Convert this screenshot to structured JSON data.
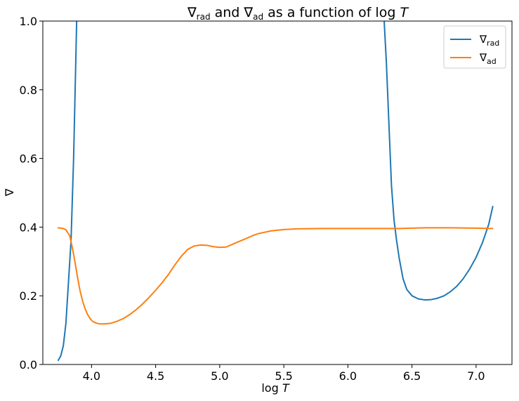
{
  "chart_data": {
    "type": "line",
    "title": {
      "main_a": "∇",
      "sub_a": "rad",
      "mid": " and ",
      "main_b": "∇",
      "sub_b": "ad",
      "rest": " as a function of log ",
      "var": "T"
    },
    "xlabel": {
      "text": "log ",
      "var": "T"
    },
    "ylabel": "∇",
    "xlim": [
      3.62,
      7.28
    ],
    "ylim": [
      0.0,
      1.0
    ],
    "xticks": [
      4.0,
      4.5,
      5.0,
      5.5,
      6.0,
      6.5,
      7.0
    ],
    "xtick_labels": [
      "4.0",
      "4.5",
      "5.0",
      "5.5",
      "6.0",
      "6.5",
      "7.0"
    ],
    "yticks": [
      0.0,
      0.2,
      0.4,
      0.6,
      0.8,
      1.0
    ],
    "ytick_labels": [
      "0.0",
      "0.2",
      "0.4",
      "0.6",
      "0.8",
      "1.0"
    ],
    "grid": false,
    "legend_position": "top-right",
    "series": [
      {
        "name": {
          "main": "∇",
          "sub": "rad"
        },
        "color": "#1f77b4",
        "points": [
          [
            3.74,
            0.012
          ],
          [
            3.76,
            0.025
          ],
          [
            3.78,
            0.055
          ],
          [
            3.8,
            0.12
          ],
          [
            3.82,
            0.24
          ],
          [
            3.84,
            0.36
          ],
          [
            3.86,
            0.6
          ],
          [
            3.875,
            0.85
          ],
          [
            3.885,
            1.02
          ]
        ],
        "points_2": [
          [
            6.28,
            1.02
          ],
          [
            6.3,
            0.88
          ],
          [
            6.32,
            0.7
          ],
          [
            6.34,
            0.52
          ],
          [
            6.36,
            0.42
          ],
          [
            6.38,
            0.36
          ],
          [
            6.4,
            0.31
          ],
          [
            6.43,
            0.25
          ],
          [
            6.46,
            0.218
          ],
          [
            6.5,
            0.2
          ],
          [
            6.55,
            0.191
          ],
          [
            6.6,
            0.188
          ],
          [
            6.65,
            0.189
          ],
          [
            6.7,
            0.193
          ],
          [
            6.75,
            0.2
          ],
          [
            6.8,
            0.212
          ],
          [
            6.85,
            0.228
          ],
          [
            6.9,
            0.25
          ],
          [
            6.95,
            0.278
          ],
          [
            7.0,
            0.312
          ],
          [
            7.05,
            0.355
          ],
          [
            7.1,
            0.41
          ],
          [
            7.13,
            0.46
          ]
        ]
      },
      {
        "name": {
          "main": "∇",
          "sub": "ad"
        },
        "color": "#ff7f0e",
        "points": [
          [
            3.74,
            0.398
          ],
          [
            3.78,
            0.396
          ],
          [
            3.8,
            0.392
          ],
          [
            3.83,
            0.375
          ],
          [
            3.85,
            0.34
          ],
          [
            3.87,
            0.3
          ],
          [
            3.89,
            0.255
          ],
          [
            3.91,
            0.215
          ],
          [
            3.93,
            0.185
          ],
          [
            3.95,
            0.162
          ],
          [
            3.97,
            0.145
          ],
          [
            3.99,
            0.133
          ],
          [
            4.01,
            0.125
          ],
          [
            4.04,
            0.12
          ],
          [
            4.07,
            0.118
          ],
          [
            4.1,
            0.118
          ],
          [
            4.15,
            0.12
          ],
          [
            4.2,
            0.126
          ],
          [
            4.25,
            0.134
          ],
          [
            4.3,
            0.146
          ],
          [
            4.35,
            0.16
          ],
          [
            4.4,
            0.177
          ],
          [
            4.45,
            0.196
          ],
          [
            4.5,
            0.216
          ],
          [
            4.55,
            0.238
          ],
          [
            4.6,
            0.262
          ],
          [
            4.65,
            0.29
          ],
          [
            4.7,
            0.315
          ],
          [
            4.75,
            0.335
          ],
          [
            4.8,
            0.345
          ],
          [
            4.85,
            0.348
          ],
          [
            4.9,
            0.347
          ],
          [
            4.95,
            0.343
          ],
          [
            5.0,
            0.341
          ],
          [
            5.05,
            0.342
          ],
          [
            5.1,
            0.35
          ],
          [
            5.15,
            0.358
          ],
          [
            5.2,
            0.366
          ],
          [
            5.25,
            0.374
          ],
          [
            5.3,
            0.381
          ],
          [
            5.4,
            0.389
          ],
          [
            5.5,
            0.393
          ],
          [
            5.6,
            0.395
          ],
          [
            5.8,
            0.396
          ],
          [
            6.0,
            0.396
          ],
          [
            6.2,
            0.396
          ],
          [
            6.4,
            0.396
          ],
          [
            6.6,
            0.398
          ],
          [
            6.8,
            0.398
          ],
          [
            7.0,
            0.397
          ],
          [
            7.13,
            0.396
          ]
        ]
      }
    ]
  }
}
